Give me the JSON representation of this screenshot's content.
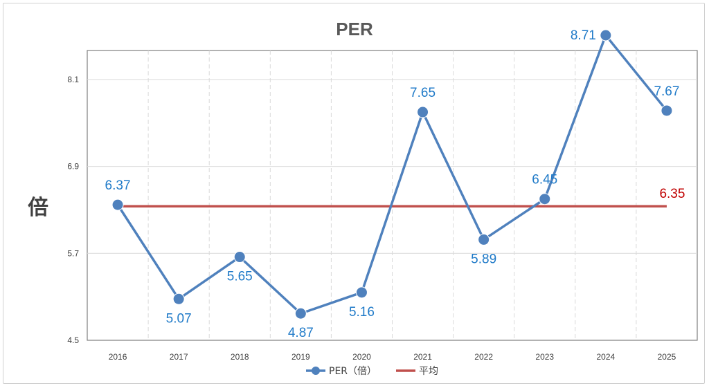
{
  "chart_data": {
    "type": "line",
    "title": "PER",
    "ylabel": "倍",
    "xlabel": "",
    "categories": [
      "2016",
      "2017",
      "2018",
      "2019",
      "2020",
      "2021",
      "2022",
      "2023",
      "2024",
      "2025"
    ],
    "series": [
      {
        "name": "PER（倍）",
        "color": "#4f81bd",
        "label_color": "#1f7ac8",
        "values": [
          6.37,
          5.07,
          5.65,
          4.87,
          5.16,
          7.65,
          5.89,
          6.45,
          8.71,
          7.67
        ],
        "labels": [
          "6.37",
          "5.07",
          "5.65",
          "4.87",
          "5.16",
          "7.65",
          "5.89",
          "6.45",
          "8.71",
          "7.67"
        ],
        "label_pos": [
          "above",
          "below",
          "below",
          "below",
          "below",
          "above",
          "below",
          "above",
          "left",
          "above"
        ]
      },
      {
        "name": "平均",
        "color": "#c0504d",
        "value": 6.35,
        "label": "6.35"
      }
    ],
    "yticks": [
      "4.5",
      "5.7",
      "6.9",
      "8.1"
    ],
    "ylim": [
      4.5,
      8.5
    ],
    "grid": true,
    "legend": "bottom"
  }
}
